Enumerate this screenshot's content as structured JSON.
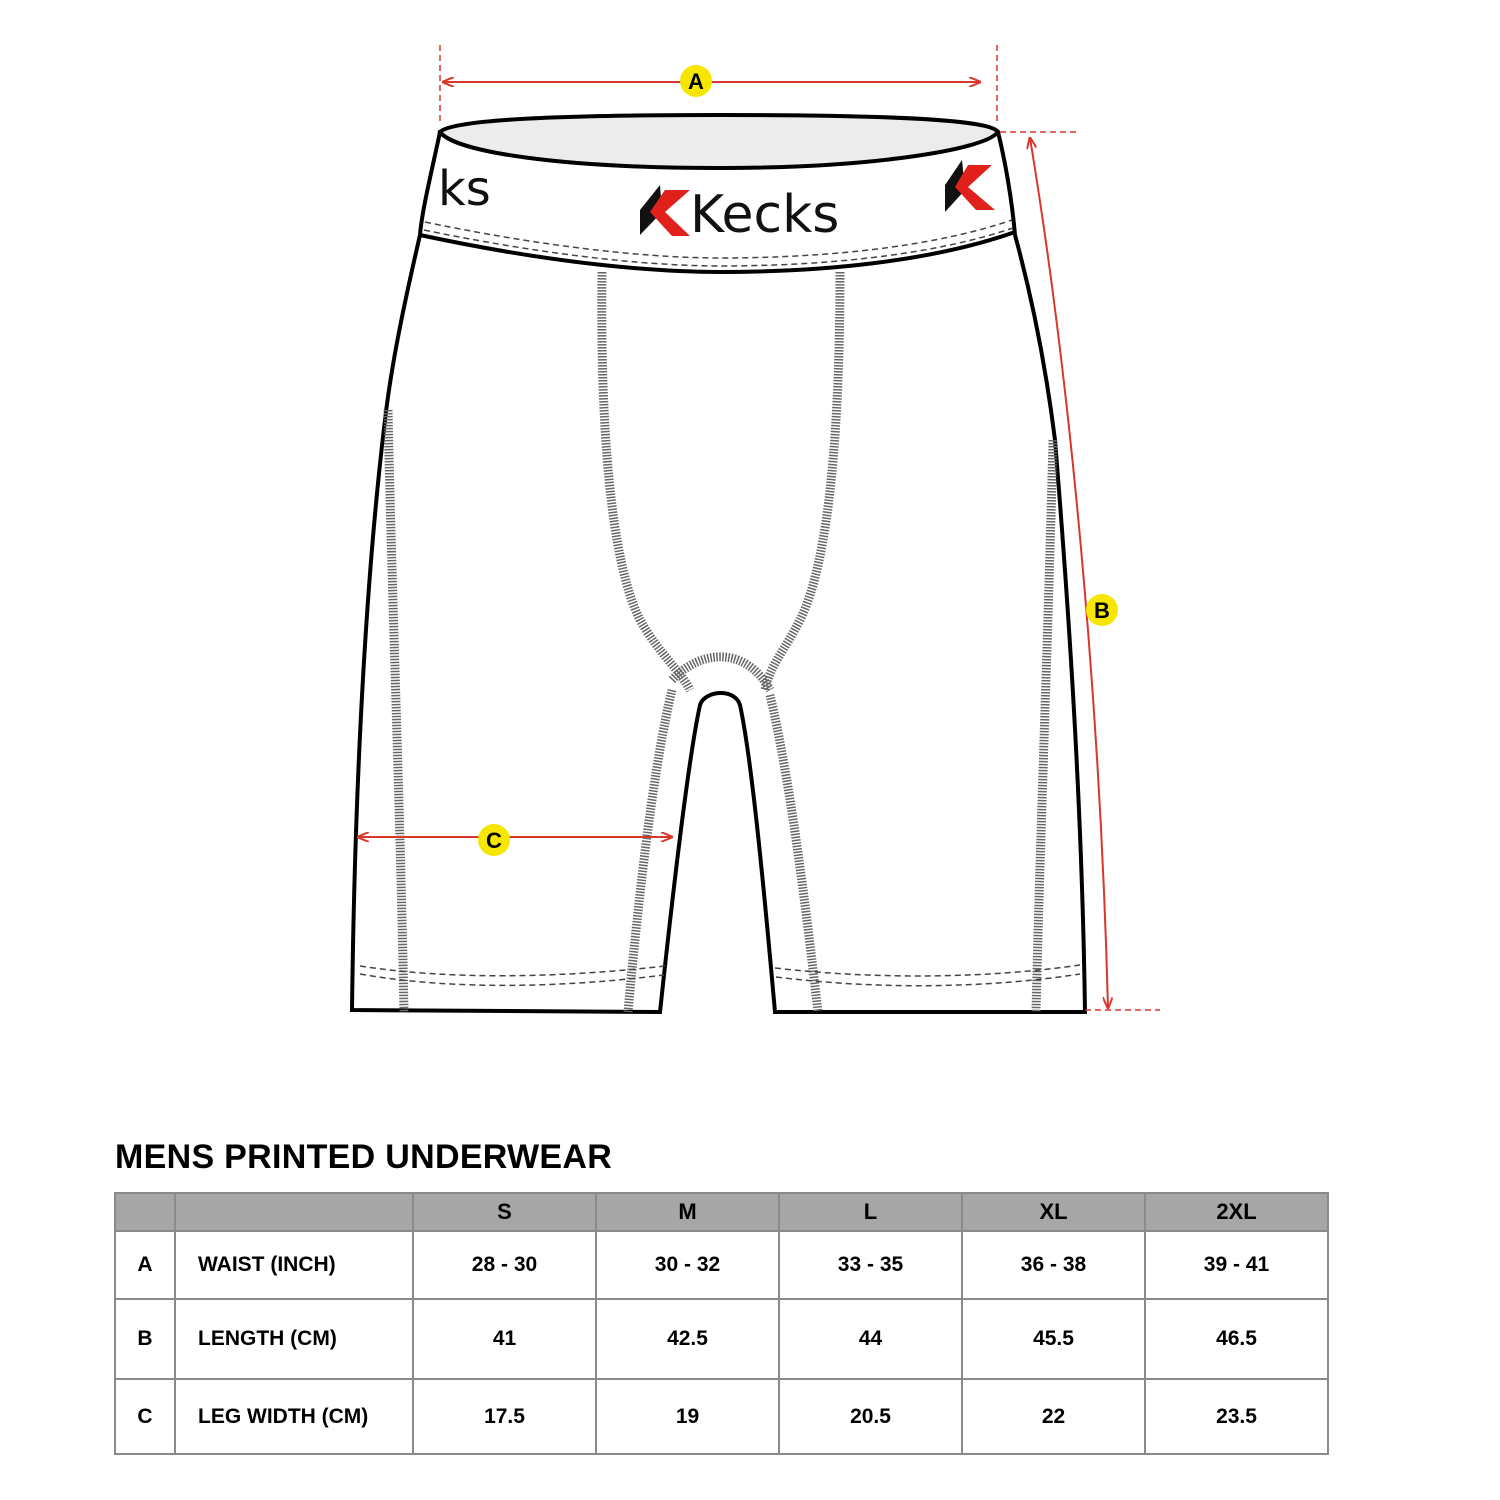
{
  "diagram": {
    "brand_logo": "Kecks",
    "dimension_labels": {
      "waist": "A",
      "length": "B",
      "leg_width": "C"
    },
    "colors": {
      "dimension_line": "#d9372b",
      "label_badge": "#f7e600",
      "seam": "#666666",
      "logo_red": "#e0201b"
    }
  },
  "size_chart": {
    "title": "MENS PRINTED UNDERWEAR",
    "columns": [
      "",
      "",
      "S",
      "M",
      "L",
      "XL",
      "2XL"
    ],
    "rows": [
      {
        "key": "A",
        "measure": "WAIST (INCH)",
        "values": [
          "28 - 30",
          "30 - 32",
          "33 - 35",
          "36 - 38",
          "39 - 41"
        ]
      },
      {
        "key": "B",
        "measure": "LENGTH (CM)",
        "values": [
          "41",
          "42.5",
          "44",
          "45.5",
          "46.5"
        ]
      },
      {
        "key": "C",
        "measure": "LEG WIDTH (CM)",
        "values": [
          "17.5",
          "19",
          "20.5",
          "22",
          "23.5"
        ]
      }
    ]
  }
}
